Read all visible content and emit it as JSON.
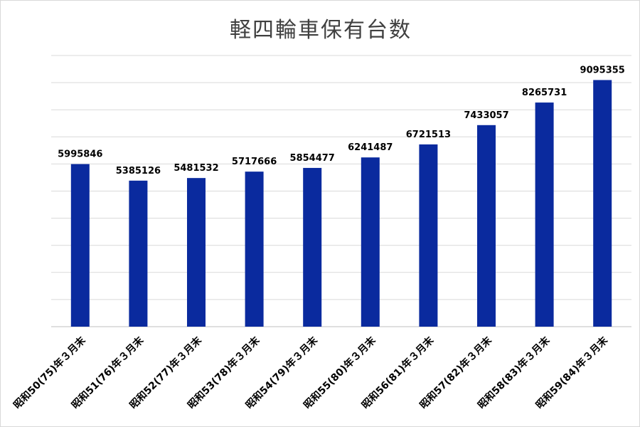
{
  "chart_data": {
    "type": "bar",
    "title": "軽四輪車保有台数",
    "xlabel": "",
    "ylabel": "",
    "ylim": [
      0,
      10000000
    ],
    "grid": true,
    "legend": "none",
    "categories": [
      "昭和50(75)年３月末",
      "昭和51(76)年３月末",
      "昭和52(77)年３月末",
      "昭和53(78)年３月末",
      "昭和54(79)年３月末",
      "昭和55(80)年３月末",
      "昭和56(81)年３月末",
      "昭和57(82)年３月末",
      "昭和58(83)年３月末",
      "昭和59(84)年３月末"
    ],
    "values": [
      5995846,
      5385126,
      5481532,
      5717666,
      5854477,
      6241487,
      6721513,
      7433057,
      8265731,
      9095355
    ],
    "bar_color": "#0a2a9e"
  }
}
